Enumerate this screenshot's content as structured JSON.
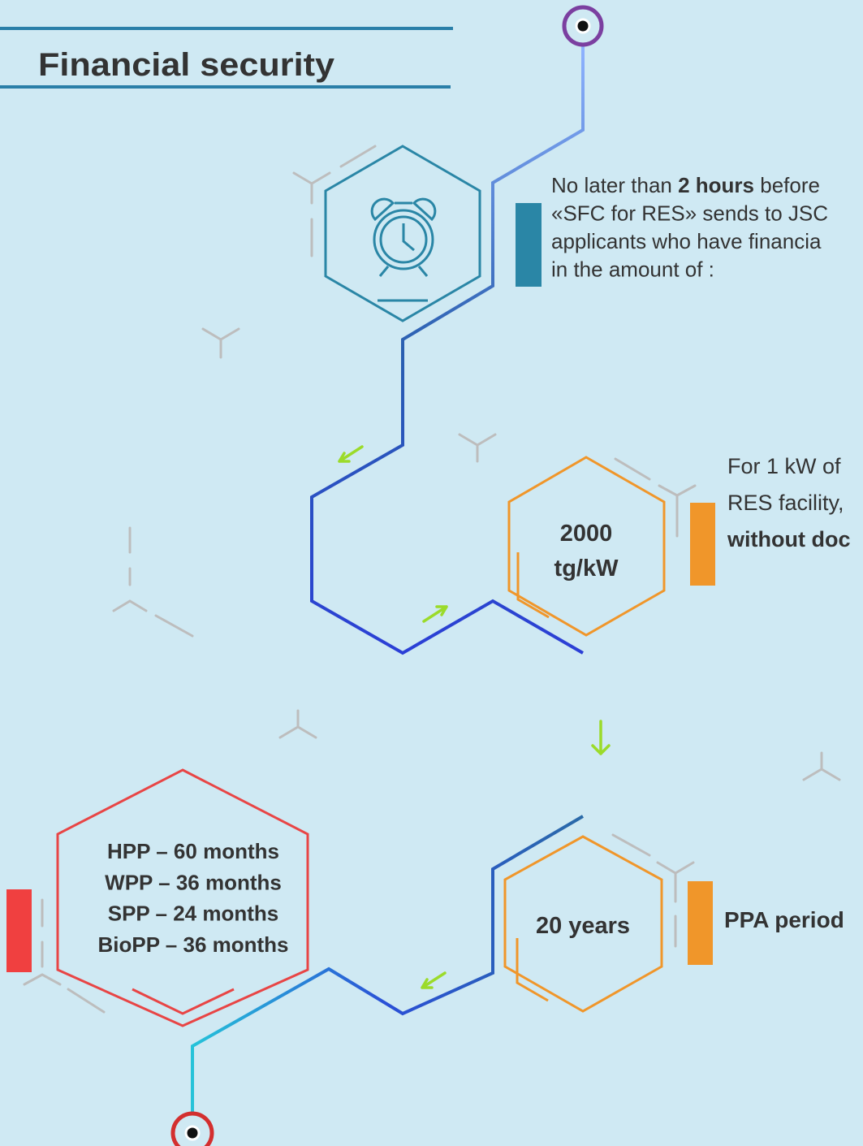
{
  "header": {
    "title": "Financial security"
  },
  "steps": [
    {
      "text_lines": [
        [
          {
            "text": "No later than ",
            "bold": false
          },
          {
            "text": "2 hours",
            "bold": true
          },
          {
            "text": " before",
            "bold": false
          }
        ],
        [
          {
            "text": "«SFC for RES» sends to JSC",
            "bold": false
          }
        ],
        [
          {
            "text": "applicants who have financia",
            "bold": false
          }
        ],
        [
          {
            "text": "in the amount of :",
            "bold": false
          }
        ]
      ]
    },
    {
      "hex_lines": [
        "2000",
        "tg/kW"
      ],
      "text_lines": [
        [
          {
            "text": "For 1 kW of",
            "bold": false
          }
        ],
        [
          {
            "text": "RES facility,",
            "bold": false
          }
        ],
        [
          {
            "text": "without doc",
            "bold": true
          }
        ]
      ]
    },
    {
      "hex_lines": [
        "20 years"
      ],
      "text_lines": [
        [
          {
            "text": "PPA period",
            "bold": true
          }
        ]
      ]
    },
    {
      "hex_lines": [
        "HPP – 60 months",
        "WPP – 36 months",
        "SPP – 24 months",
        "BioPP – 36 months"
      ]
    }
  ]
}
